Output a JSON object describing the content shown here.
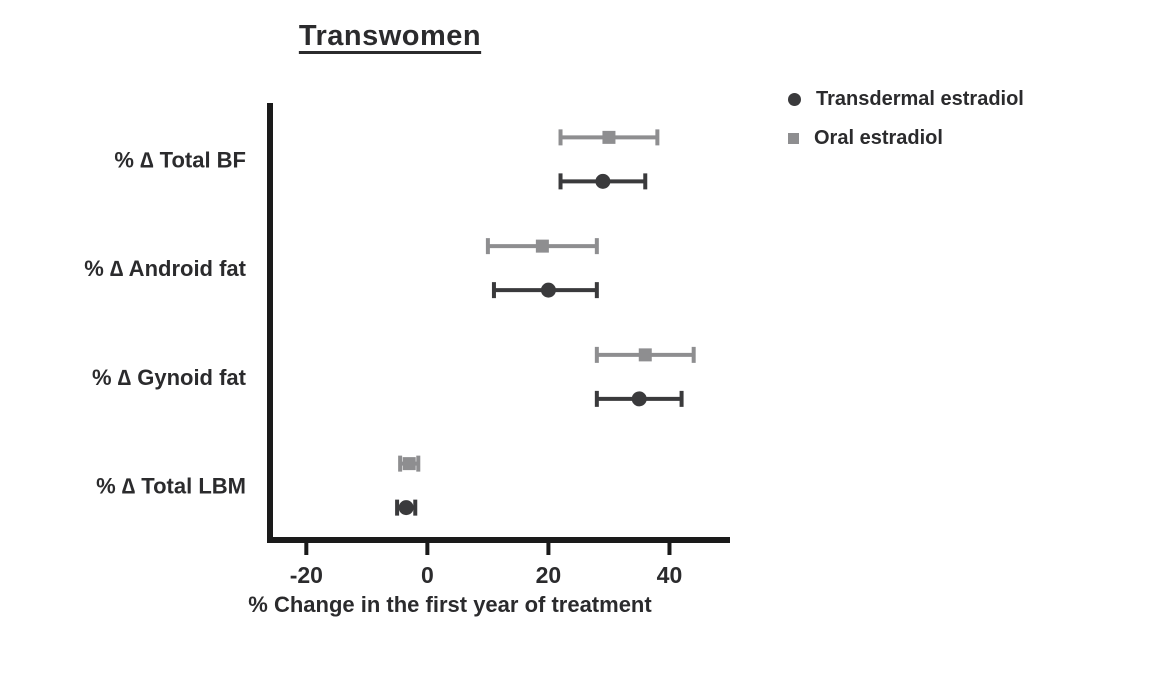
{
  "legend": [
    {
      "label": "Transdermal estradiol",
      "marker": "circle",
      "color": "#3a3a3c"
    },
    {
      "label": "Oral estradiol",
      "marker": "square",
      "color": "#8e8e90"
    }
  ],
  "chart_data": {
    "type": "scatter",
    "subtype": "horizontal-point-estimates-with-error-bars",
    "title": "Transwomen",
    "xlabel": "% Change in the first year of treatment",
    "xlim": [
      -26,
      50
    ],
    "xticks": [
      -20,
      0,
      20,
      40
    ],
    "grid": false,
    "legend_position": "top-right",
    "axis_color": "#1a1a1a",
    "text_color": "#2b2b2d",
    "categories": [
      "% ∆ Total BF",
      "% ∆ Android fat",
      "% ∆ Gynoid fat",
      "% ∆ Total LBM"
    ],
    "series": [
      {
        "name": "Oral estradiol",
        "marker": "square",
        "color": "#8e8e90",
        "row": "top",
        "values": [
          30,
          19,
          36,
          -3
        ],
        "ci_low": [
          22,
          10,
          28,
          -4.5
        ],
        "ci_high": [
          38,
          28,
          44,
          -1.5
        ]
      },
      {
        "name": "Transdermal estradiol",
        "marker": "circle",
        "color": "#3a3a3c",
        "row": "bottom",
        "values": [
          29,
          20,
          35,
          -3.5
        ],
        "ci_low": [
          22,
          11,
          28,
          -5
        ],
        "ci_high": [
          36,
          28,
          42,
          -2
        ]
      }
    ]
  }
}
